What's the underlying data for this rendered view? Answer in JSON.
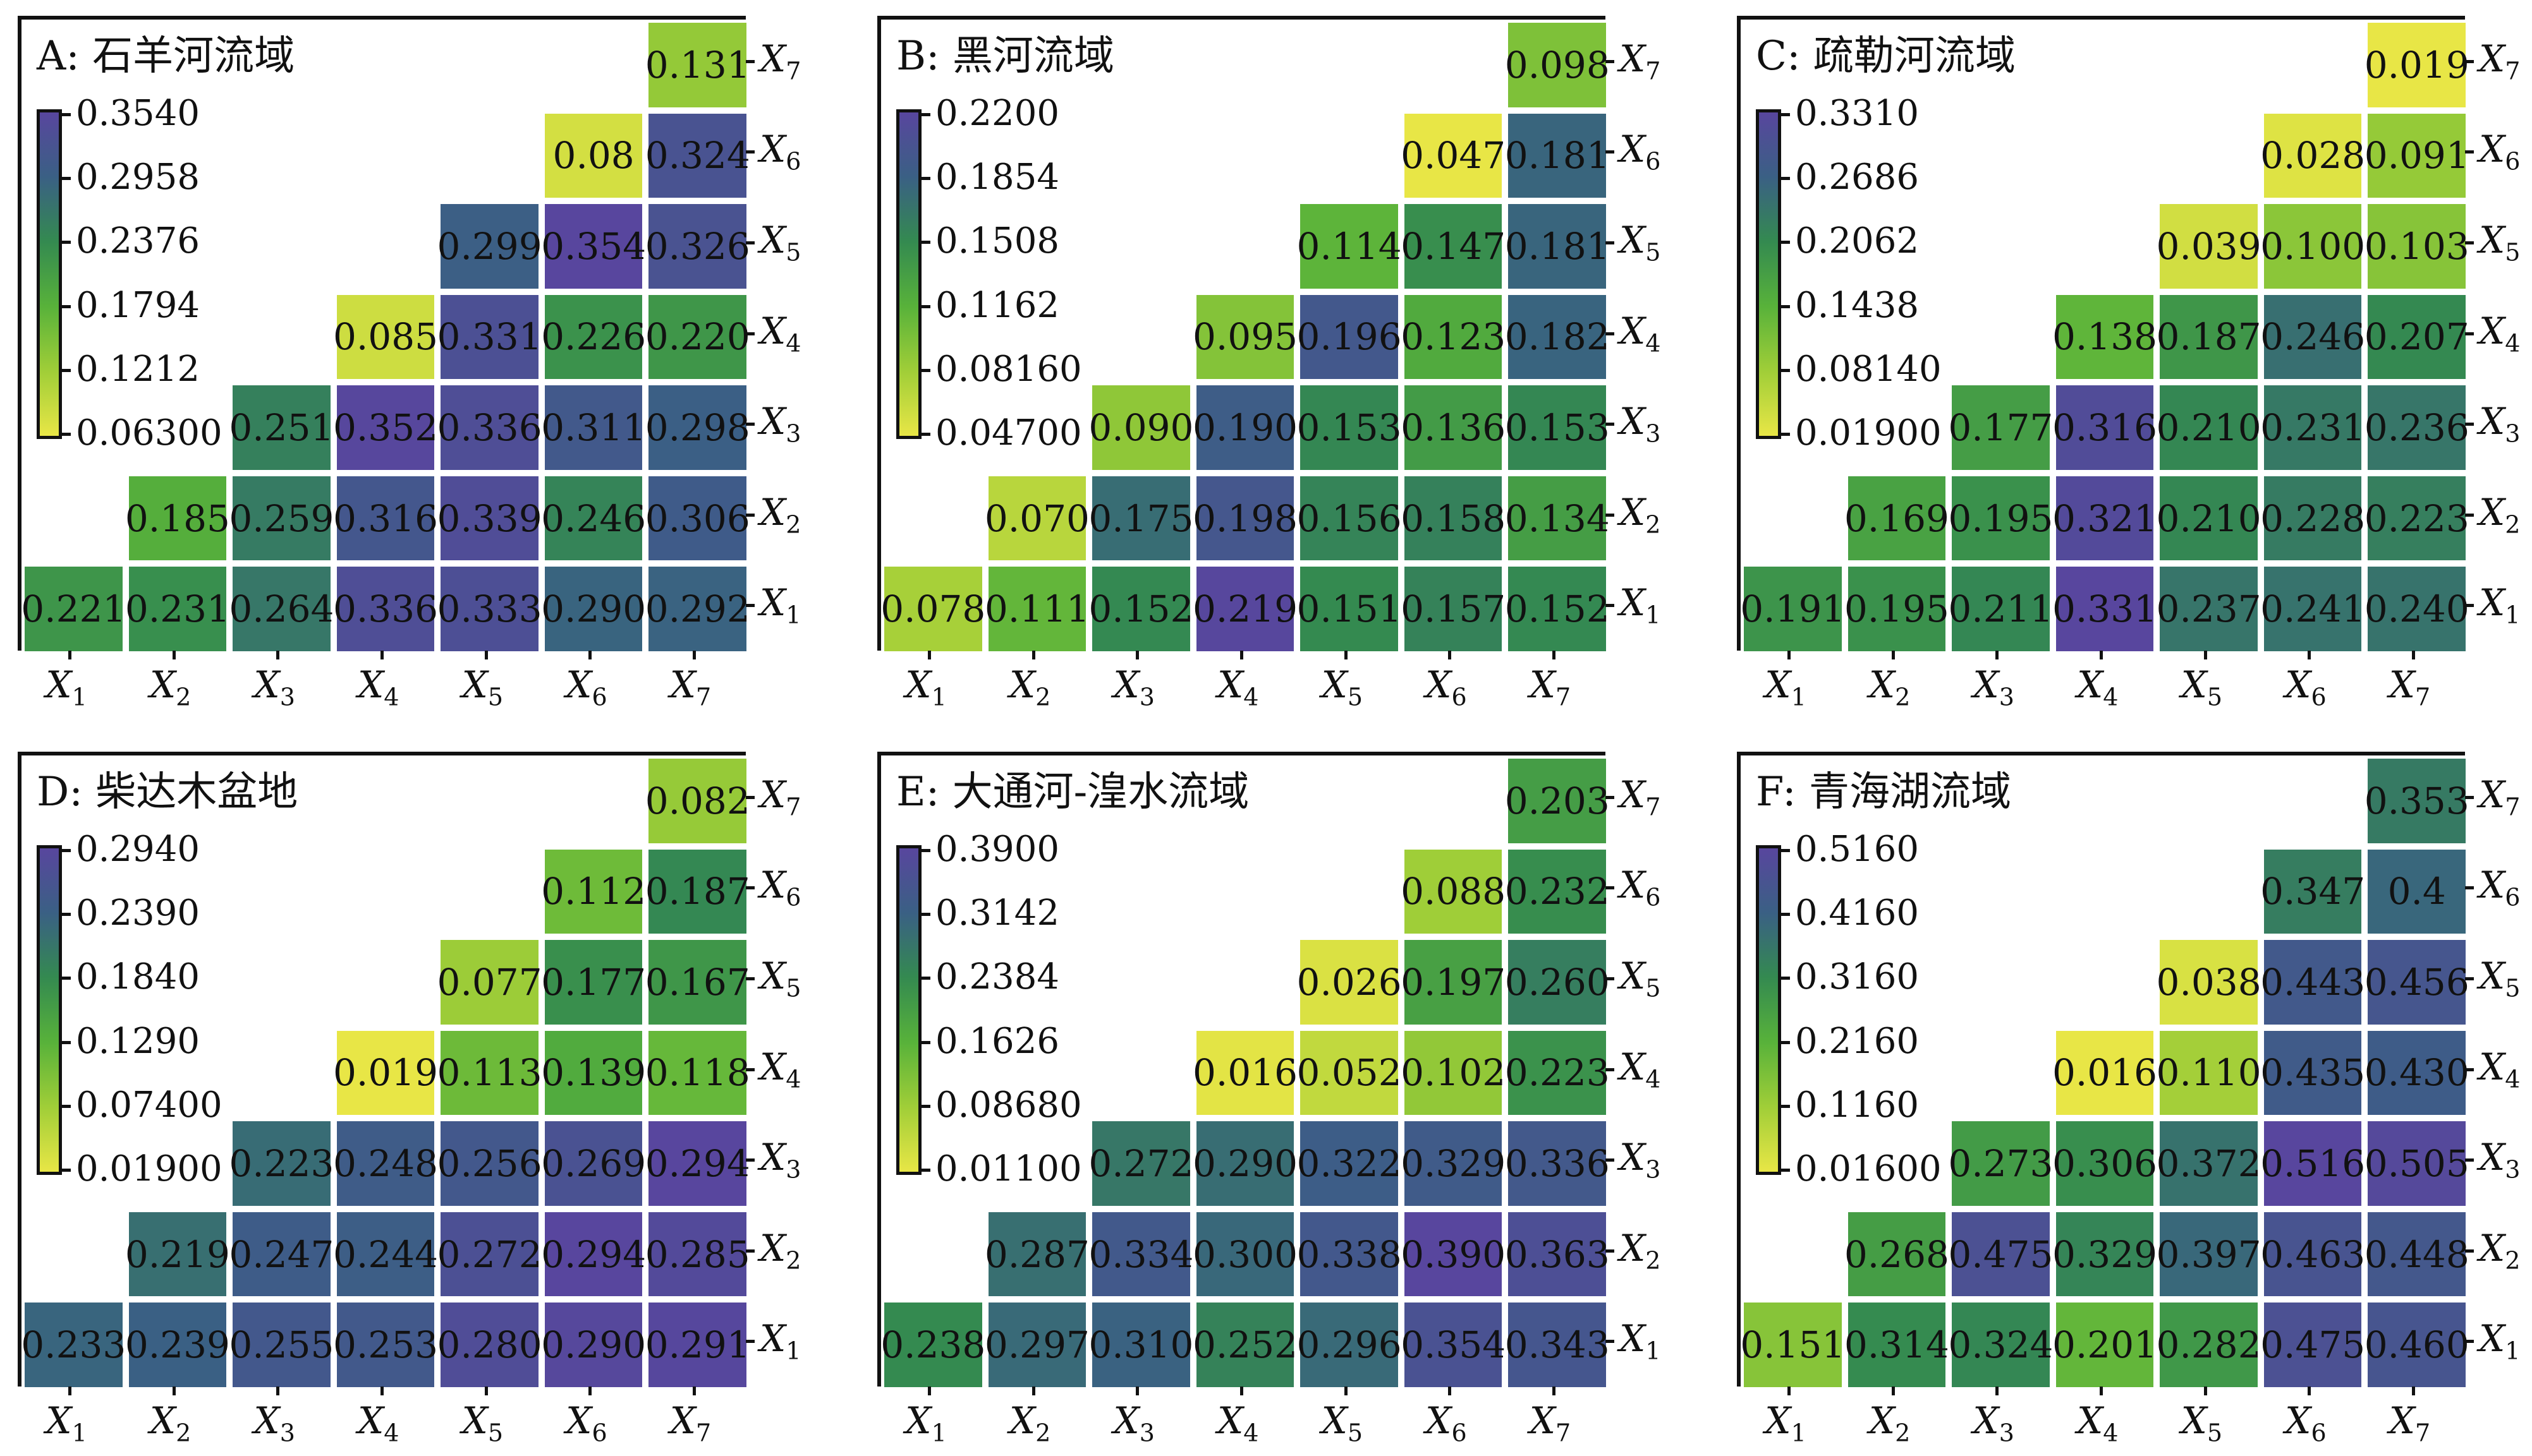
{
  "chart_data": [
    {
      "type": "heatmap",
      "title": "A: 石羊河流域",
      "x_labels": [
        "X1",
        "X2",
        "X3",
        "X4",
        "X5",
        "X6",
        "X7"
      ],
      "y_labels": [
        "X1",
        "X2",
        "X3",
        "X4",
        "X5",
        "X6",
        "X7"
      ],
      "colorbar_ticks": [
        "0.3540",
        "0.2958",
        "0.2376",
        "0.1794",
        "0.1212",
        "0.06300"
      ],
      "colorbar_range": [
        0.063,
        0.354
      ],
      "rows": [
        {
          "y": "X1",
          "cells": [
            "0.221",
            "0.231",
            "0.264",
            "0.336",
            "0.333",
            "0.290",
            "0.292"
          ]
        },
        {
          "y": "X2",
          "cells": [
            "0.185",
            "0.259",
            "0.316",
            "0.339",
            "0.246",
            "0.306"
          ]
        },
        {
          "y": "X3",
          "cells": [
            "0.251",
            "0.352",
            "0.336",
            "0.311",
            "0.298"
          ]
        },
        {
          "y": "X4",
          "cells": [
            "0.085",
            "0.331",
            "0.226",
            "0.220"
          ]
        },
        {
          "y": "X5",
          "cells": [
            "0.299",
            "0.354",
            "0.326"
          ]
        },
        {
          "y": "X6",
          "cells": [
            "0.08",
            "0.324"
          ]
        },
        {
          "y": "X7",
          "cells": [
            "0.131"
          ]
        }
      ]
    },
    {
      "type": "heatmap",
      "title": "B: 黑河流域",
      "x_labels": [
        "X1",
        "X2",
        "X3",
        "X4",
        "X5",
        "X6",
        "X7"
      ],
      "y_labels": [
        "X1",
        "X2",
        "X3",
        "X4",
        "X5",
        "X6",
        "X7"
      ],
      "colorbar_ticks": [
        "0.2200",
        "0.1854",
        "0.1508",
        "0.1162",
        "0.08160",
        "0.04700"
      ],
      "colorbar_range": [
        0.047,
        0.22
      ],
      "rows": [
        {
          "y": "X1",
          "cells": [
            "0.078",
            "0.111",
            "0.152",
            "0.219",
            "0.151",
            "0.157",
            "0.152"
          ]
        },
        {
          "y": "X2",
          "cells": [
            "0.070",
            "0.175",
            "0.198",
            "0.156",
            "0.158",
            "0.134"
          ]
        },
        {
          "y": "X3",
          "cells": [
            "0.090",
            "0.190",
            "0.153",
            "0.136",
            "0.153"
          ]
        },
        {
          "y": "X4",
          "cells": [
            "0.095",
            "0.196",
            "0.123",
            "0.182"
          ]
        },
        {
          "y": "X5",
          "cells": [
            "0.114",
            "0.147",
            "0.181"
          ]
        },
        {
          "y": "X6",
          "cells": [
            "0.047",
            "0.181"
          ]
        },
        {
          "y": "X7",
          "cells": [
            "0.098"
          ]
        }
      ]
    },
    {
      "type": "heatmap",
      "title": "C: 疏勒河流域",
      "x_labels": [
        "X1",
        "X2",
        "X3",
        "X4",
        "X5",
        "X6",
        "X7"
      ],
      "y_labels": [
        "X1",
        "X2",
        "X3",
        "X4",
        "X5",
        "X6",
        "X7"
      ],
      "colorbar_ticks": [
        "0.3310",
        "0.2686",
        "0.2062",
        "0.1438",
        "0.08140",
        "0.01900"
      ],
      "colorbar_range": [
        0.019,
        0.331
      ],
      "rows": [
        {
          "y": "X1",
          "cells": [
            "0.191",
            "0.195",
            "0.211",
            "0.331",
            "0.237",
            "0.241",
            "0.240"
          ]
        },
        {
          "y": "X2",
          "cells": [
            "0.169",
            "0.195",
            "0.321",
            "0.210",
            "0.228",
            "0.223"
          ]
        },
        {
          "y": "X3",
          "cells": [
            "0.177",
            "0.316",
            "0.210",
            "0.231",
            "0.236"
          ]
        },
        {
          "y": "X4",
          "cells": [
            "0.138",
            "0.187",
            "0.246",
            "0.207"
          ]
        },
        {
          "y": "X5",
          "cells": [
            "0.039",
            "0.100",
            "0.103"
          ]
        },
        {
          "y": "X6",
          "cells": [
            "0.028",
            "0.091"
          ]
        },
        {
          "y": "X7",
          "cells": [
            "0.019"
          ]
        }
      ]
    },
    {
      "type": "heatmap",
      "title": "D: 柴达木盆地",
      "x_labels": [
        "X1",
        "X2",
        "X3",
        "X4",
        "X5",
        "X6",
        "X7"
      ],
      "y_labels": [
        "X1",
        "X2",
        "X3",
        "X4",
        "X5",
        "X6",
        "X7"
      ],
      "colorbar_ticks": [
        "0.2940",
        "0.2390",
        "0.1840",
        "0.1290",
        "0.07400",
        "0.01900"
      ],
      "colorbar_range": [
        0.019,
        0.294
      ],
      "rows": [
        {
          "y": "X1",
          "cells": [
            "0.233",
            "0.239",
            "0.255",
            "0.253",
            "0.280",
            "0.290",
            "0.291"
          ]
        },
        {
          "y": "X2",
          "cells": [
            "0.219",
            "0.247",
            "0.244",
            "0.272",
            "0.294",
            "0.285"
          ]
        },
        {
          "y": "X3",
          "cells": [
            "0.223",
            "0.248",
            "0.256",
            "0.269",
            "0.294"
          ]
        },
        {
          "y": "X4",
          "cells": [
            "0.019",
            "0.113",
            "0.139",
            "0.118"
          ]
        },
        {
          "y": "X5",
          "cells": [
            "0.077",
            "0.177",
            "0.167"
          ]
        },
        {
          "y": "X6",
          "cells": [
            "0.112",
            "0.187"
          ]
        },
        {
          "y": "X7",
          "cells": [
            "0.082"
          ]
        }
      ]
    },
    {
      "type": "heatmap",
      "title": "E: 大通河-湟水流域",
      "x_labels": [
        "X1",
        "X2",
        "X3",
        "X4",
        "X5",
        "X6",
        "X7"
      ],
      "y_labels": [
        "X1",
        "X2",
        "X3",
        "X4",
        "X5",
        "X6",
        "X7"
      ],
      "colorbar_ticks": [
        "0.3900",
        "0.3142",
        "0.2384",
        "0.1626",
        "0.08680",
        "0.01100"
      ],
      "colorbar_range": [
        0.011,
        0.39
      ],
      "rows": [
        {
          "y": "X1",
          "cells": [
            "0.238",
            "0.297",
            "0.310",
            "0.252",
            "0.296",
            "0.354",
            "0.343"
          ]
        },
        {
          "y": "X2",
          "cells": [
            "0.287",
            "0.334",
            "0.300",
            "0.338",
            "0.390",
            "0.363"
          ]
        },
        {
          "y": "X3",
          "cells": [
            "0.272",
            "0.290",
            "0.322",
            "0.329",
            "0.336"
          ]
        },
        {
          "y": "X4",
          "cells": [
            "0.016",
            "0.052",
            "0.102",
            "0.223"
          ]
        },
        {
          "y": "X5",
          "cells": [
            "0.026",
            "0.197",
            "0.260"
          ]
        },
        {
          "y": "X6",
          "cells": [
            "0.088",
            "0.232"
          ]
        },
        {
          "y": "X7",
          "cells": [
            "0.203"
          ]
        }
      ]
    },
    {
      "type": "heatmap",
      "title": "F: 青海湖流域",
      "x_labels": [
        "X1",
        "X2",
        "X3",
        "X4",
        "X5",
        "X6",
        "X7"
      ],
      "y_labels": [
        "X1",
        "X2",
        "X3",
        "X4",
        "X5",
        "X6",
        "X7"
      ],
      "colorbar_ticks": [
        "0.5160",
        "0.4160",
        "0.3160",
        "0.2160",
        "0.1160",
        "0.01600"
      ],
      "colorbar_range": [
        0.016,
        0.516
      ],
      "rows": [
        {
          "y": "X1",
          "cells": [
            "0.151",
            "0.314",
            "0.324",
            "0.201",
            "0.282",
            "0.475",
            "0.460"
          ]
        },
        {
          "y": "X2",
          "cells": [
            "0.268",
            "0.475",
            "0.329",
            "0.397",
            "0.463",
            "0.448"
          ]
        },
        {
          "y": "X3",
          "cells": [
            "0.273",
            "0.306",
            "0.372",
            "0.516",
            "0.505"
          ]
        },
        {
          "y": "X4",
          "cells": [
            "0.016",
            "0.110",
            "0.435",
            "0.430"
          ]
        },
        {
          "y": "X5",
          "cells": [
            "0.038",
            "0.443",
            "0.456"
          ]
        },
        {
          "y": "X6",
          "cells": [
            "0.347",
            "0.4"
          ]
        },
        {
          "y": "X7",
          "cells": [
            "0.353"
          ]
        }
      ]
    }
  ]
}
